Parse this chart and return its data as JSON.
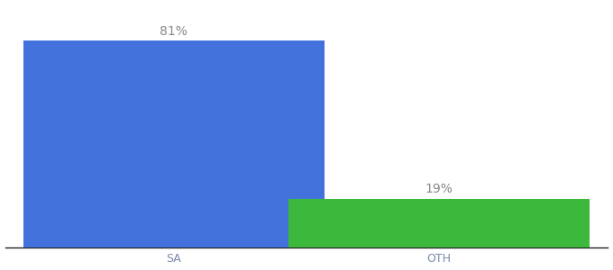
{
  "categories": [
    "SA",
    "OTH"
  ],
  "values": [
    81,
    19
  ],
  "bar_colors": [
    "#4472dd",
    "#3cb83c"
  ],
  "label_texts": [
    "81%",
    "19%"
  ],
  "background_color": "#ffffff",
  "ylim": [
    0,
    95
  ],
  "bar_width": 0.5,
  "label_fontsize": 10,
  "tick_fontsize": 9,
  "label_color": "#888888",
  "tick_color": "#7a8aaa",
  "x_positions": [
    0.28,
    0.72
  ],
  "xlim": [
    0.0,
    1.0
  ]
}
